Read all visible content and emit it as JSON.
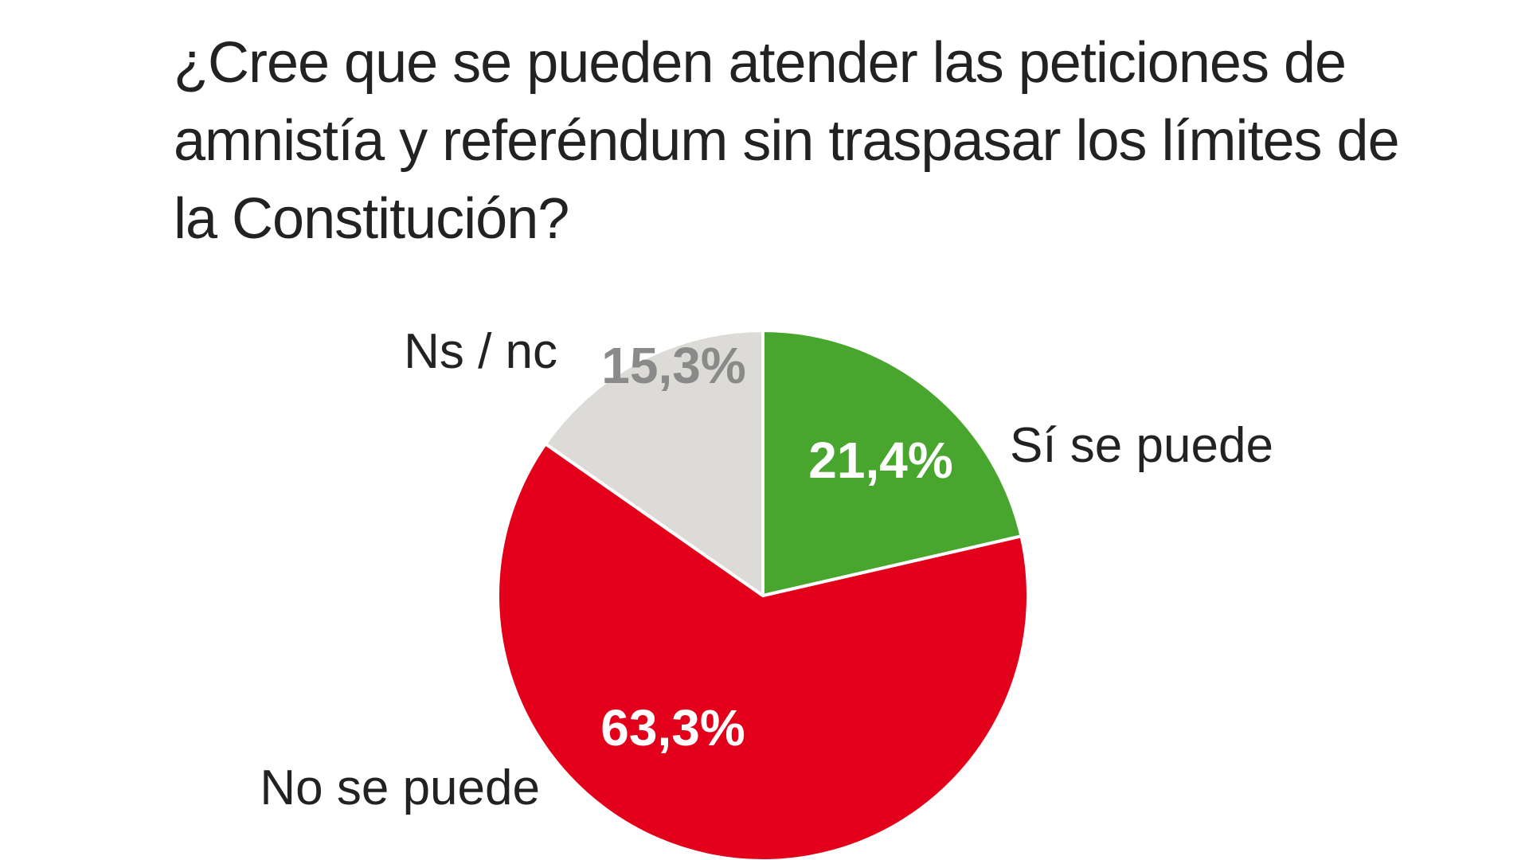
{
  "chart_data": {
    "type": "pie",
    "title": "¿Cree que se pueden atender las peticiones de amnistía y referéndum sin traspasar los límites de la Constitución?",
    "slices": [
      {
        "label": "Sí se puede",
        "value": 21.4,
        "value_label": "21,4%",
        "color": "#48a52e",
        "value_color": "#ffffff"
      },
      {
        "label": "No se puede",
        "value": 63.3,
        "value_label": "63,3%",
        "color": "#e2001a",
        "value_color": "#ffffff"
      },
      {
        "label": "Ns / nc",
        "value": 15.3,
        "value_label": "15,3%",
        "color": "#dcdbd7",
        "value_color": "#8a8a8a"
      }
    ],
    "start_angle": "12 o'clock",
    "direction": "clockwise",
    "legend": "none"
  }
}
